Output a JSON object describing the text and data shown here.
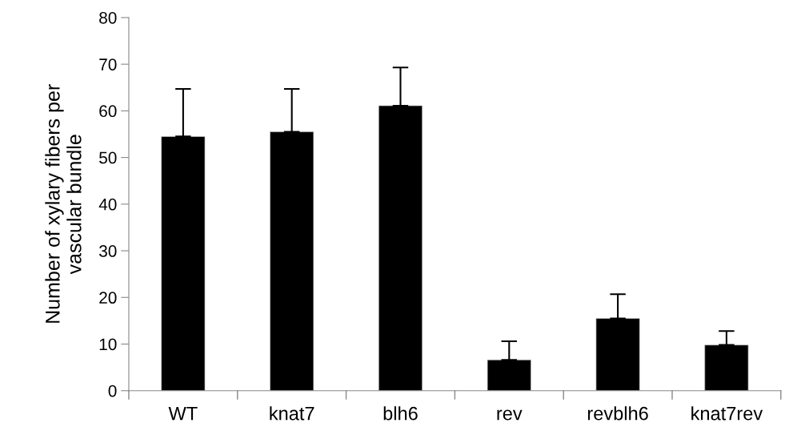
{
  "chart_data": {
    "type": "bar",
    "ylabel": "Number of xylary fibers per\nvascular bundle",
    "categories": [
      "WT",
      "knat7",
      "blh6",
      "rev",
      "revblh6",
      "knat7rev"
    ],
    "values": [
      54.5,
      55.5,
      61.1,
      6.6,
      15.5,
      9.8
    ],
    "errors": [
      [
        54.5,
        64.7
      ],
      [
        55.5,
        64.7
      ],
      [
        61.1,
        69.3
      ],
      [
        6.6,
        10.6
      ],
      [
        15.5,
        20.7
      ],
      [
        9.8,
        12.8
      ]
    ],
    "color": "#000000",
    "ylim": [
      0,
      80
    ],
    "yticks": [
      0,
      10,
      20,
      30,
      40,
      50,
      60,
      70,
      80
    ],
    "grid": false,
    "legend": false
  }
}
